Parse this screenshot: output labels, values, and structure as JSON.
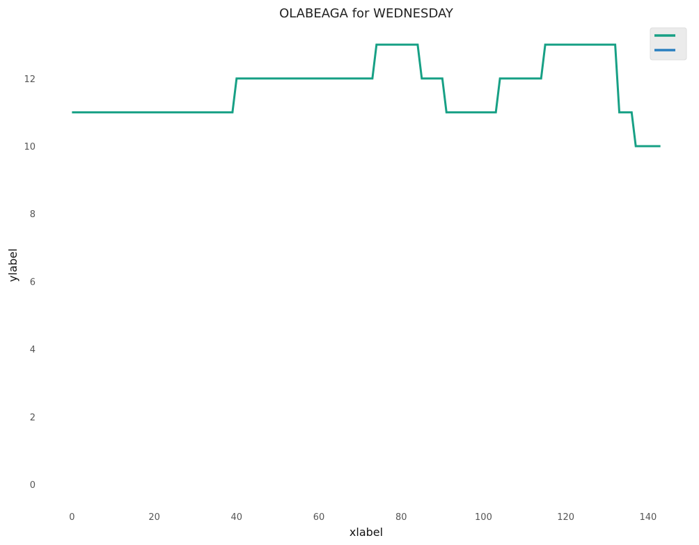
{
  "chart_data": {
    "type": "line",
    "title": "OLABEAGA for WEDNESDAY",
    "xlabel": "xlabel",
    "ylabel": "ylabel",
    "xlim": [
      -7,
      150
    ],
    "ylim": [
      -0.7,
      13.6
    ],
    "x_ticks": [
      0,
      20,
      40,
      60,
      80,
      100,
      120,
      140
    ],
    "y_ticks": [
      0,
      2,
      4,
      6,
      8,
      10,
      12
    ],
    "grid": false,
    "legend_position": "top-right",
    "series": [
      {
        "color": "#17a085",
        "points": [
          [
            0,
            11
          ],
          [
            39,
            11
          ],
          [
            40,
            12
          ],
          [
            73,
            12
          ],
          [
            74,
            13
          ],
          [
            84,
            13
          ],
          [
            85,
            12
          ],
          [
            90,
            12
          ],
          [
            91,
            11
          ],
          [
            103,
            11
          ],
          [
            104,
            12
          ],
          [
            114,
            12
          ],
          [
            115,
            13
          ],
          [
            132,
            13
          ],
          [
            133,
            11
          ],
          [
            136,
            11
          ],
          [
            137,
            10
          ],
          [
            143,
            10
          ]
        ]
      },
      {
        "color": "#2a7fc0",
        "points": []
      }
    ]
  }
}
